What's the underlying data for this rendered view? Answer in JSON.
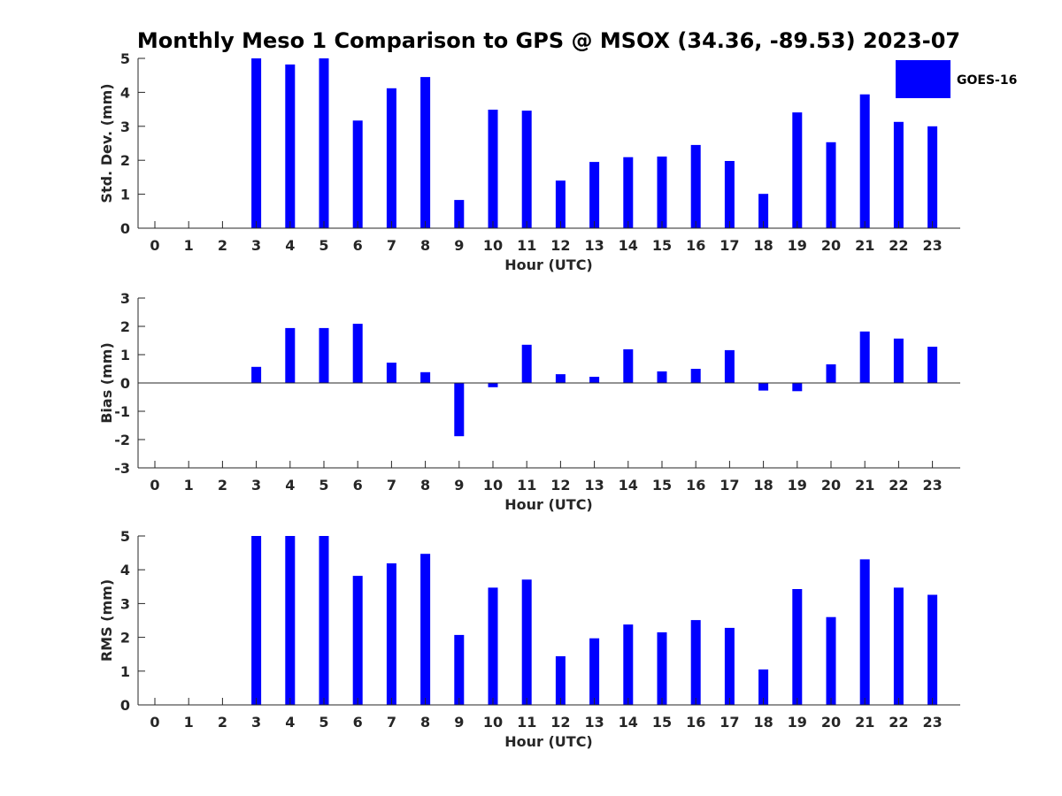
{
  "title": "Monthly Meso 1 Comparison to GPS @ MSOX (34.36, -89.53) 2023-07",
  "legend": {
    "label": "GOES-16",
    "color": "#0000ff",
    "placement": "top-right"
  },
  "chart_data": [
    {
      "type": "bar",
      "xlabel": "Hour (UTC)",
      "ylabel": "Std. Dev. (mm)",
      "ylim": [
        0,
        5
      ],
      "yticks": [
        0,
        1,
        2,
        3,
        4,
        5
      ],
      "categories": [
        "0",
        "1",
        "2",
        "3",
        "4",
        "5",
        "6",
        "7",
        "8",
        "9",
        "10",
        "11",
        "12",
        "13",
        "14",
        "15",
        "16",
        "17",
        "18",
        "19",
        "20",
        "21",
        "22",
        "23"
      ],
      "values": [
        null,
        null,
        null,
        5.0,
        4.82,
        5.0,
        3.17,
        4.12,
        4.45,
        0.83,
        3.49,
        3.46,
        1.4,
        1.95,
        2.09,
        2.11,
        2.45,
        1.98,
        1.01,
        3.41,
        2.53,
        3.94,
        3.13,
        3.0
      ],
      "color": "#0000ff"
    },
    {
      "type": "bar",
      "xlabel": "Hour (UTC)",
      "ylabel": "Bias (mm)",
      "ylim": [
        -3,
        3
      ],
      "yticks": [
        -3,
        -2,
        -1,
        0,
        1,
        2,
        3
      ],
      "categories": [
        "0",
        "1",
        "2",
        "3",
        "4",
        "5",
        "6",
        "7",
        "8",
        "9",
        "10",
        "11",
        "12",
        "13",
        "14",
        "15",
        "16",
        "17",
        "18",
        "19",
        "20",
        "21",
        "22",
        "23"
      ],
      "values": [
        null,
        null,
        null,
        0.57,
        1.94,
        1.94,
        2.09,
        0.72,
        0.38,
        -1.88,
        -0.15,
        1.35,
        0.31,
        0.22,
        1.19,
        0.41,
        0.5,
        1.16,
        -0.27,
        -0.29,
        0.66,
        1.82,
        1.57,
        1.28
      ],
      "color": "#0000ff"
    },
    {
      "type": "bar",
      "xlabel": "Hour (UTC)",
      "ylabel": "RMS (mm)",
      "ylim": [
        0,
        5
      ],
      "yticks": [
        0,
        1,
        2,
        3,
        4,
        5
      ],
      "categories": [
        "0",
        "1",
        "2",
        "3",
        "4",
        "5",
        "6",
        "7",
        "8",
        "9",
        "10",
        "11",
        "12",
        "13",
        "14",
        "15",
        "16",
        "17",
        "18",
        "19",
        "20",
        "21",
        "22",
        "23"
      ],
      "values": [
        null,
        null,
        null,
        5.0,
        5.0,
        5.0,
        3.82,
        4.19,
        4.47,
        2.07,
        3.47,
        3.71,
        1.44,
        1.97,
        2.38,
        2.15,
        2.51,
        2.28,
        1.05,
        3.43,
        2.6,
        4.31,
        3.47,
        3.26
      ],
      "color": "#0000ff"
    }
  ]
}
